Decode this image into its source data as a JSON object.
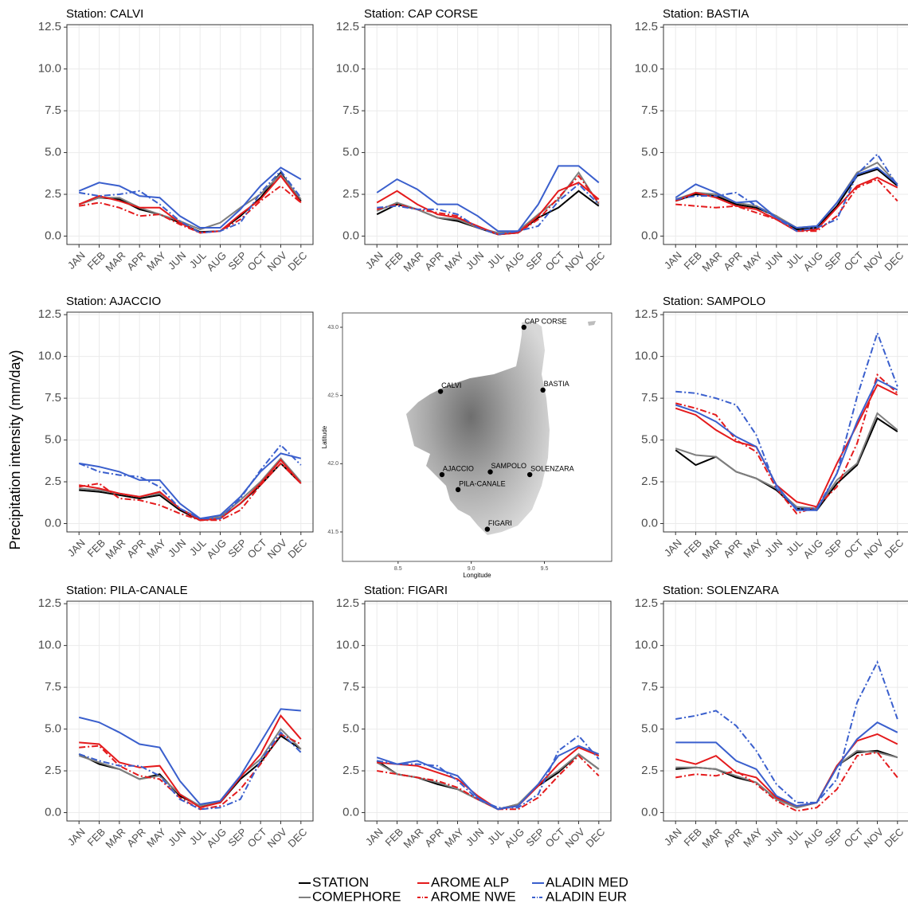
{
  "y_axis_label": "Precipitation intensity (mm/day)",
  "legend": [
    {
      "name": "STATION",
      "color": "#000000",
      "dash": "solid"
    },
    {
      "name": "COMEPHORE",
      "color": "#7f7f7f",
      "dash": "solid"
    },
    {
      "name": "AROME ALP",
      "color": "#e41a1c",
      "dash": "solid"
    },
    {
      "name": "AROME NWE",
      "color": "#e41a1c",
      "dash": "dotdash"
    },
    {
      "name": "ALADIN MED",
      "color": "#3a5fcd",
      "dash": "solid"
    },
    {
      "name": "ALADIN EUR",
      "color": "#3a5fcd",
      "dash": "dotdash"
    }
  ],
  "chart_data": [
    {
      "type": "line",
      "title": "Station: CALVI",
      "categories": [
        "JAN",
        "FEB",
        "MAR",
        "APR",
        "MAY",
        "JUN",
        "JUL",
        "AUG",
        "SEP",
        "OCT",
        "NOV",
        "DEC"
      ],
      "ylim": [
        -0.5,
        12.65
      ],
      "yticks": [
        {
          "value": 0,
          "label": "0.0"
        },
        2.5,
        {
          "value": 5,
          "label": "5.0"
        },
        7.5,
        {
          "value": 10,
          "label": "10.0"
        },
        12.5
      ],
      "grid": true,
      "series": [
        {
          "values": [
            1.9,
            2.3,
            2.2,
            1.6,
            1.3,
            0.8,
            0.25,
            0.3,
            1.2,
            2.3,
            3.8,
            2.1
          ]
        },
        {
          "values": [
            1.9,
            2.3,
            2.3,
            1.7,
            1.3,
            0.9,
            0.4,
            0.8,
            1.7,
            2.5,
            3.7,
            2.2
          ]
        },
        {
          "values": [
            1.9,
            2.4,
            2.1,
            1.7,
            1.7,
            0.8,
            0.2,
            0.3,
            1.3,
            2.2,
            3.6,
            2.0
          ]
        },
        {
          "values": [
            1.8,
            2.0,
            1.7,
            1.2,
            1.3,
            0.7,
            0.2,
            0.3,
            1.0,
            2.1,
            3.0,
            2.0
          ]
        },
        {
          "values": [
            2.7,
            3.2,
            3.0,
            2.4,
            2.3,
            1.2,
            0.5,
            0.5,
            1.6,
            3.0,
            4.1,
            3.4
          ]
        },
        {
          "values": [
            2.6,
            2.4,
            2.5,
            2.7,
            1.9,
            0.9,
            0.2,
            0.3,
            0.8,
            2.6,
            3.9,
            2.3
          ]
        }
      ]
    },
    {
      "type": "line",
      "title": "Station: CAP CORSE",
      "categories": [
        "JAN",
        "FEB",
        "MAR",
        "APR",
        "MAY",
        "JUN",
        "JUL",
        "AUG",
        "SEP",
        "OCT",
        "NOV",
        "DEC"
      ],
      "ylim": [
        -0.5,
        12.65
      ],
      "yticks": [
        {
          "value": 0,
          "label": "0.0"
        },
        2.5,
        {
          "value": 5,
          "label": "5.0"
        },
        7.5,
        {
          "value": 10,
          "label": "10.0"
        },
        12.5
      ],
      "grid": true,
      "series": [
        {
          "values": [
            1.3,
            1.9,
            1.6,
            1.1,
            0.9,
            0.5,
            0.1,
            0.2,
            1.1,
            1.7,
            2.7,
            1.8
          ]
        },
        {
          "values": [
            1.5,
            2.0,
            1.6,
            1.1,
            1.0,
            0.5,
            0.2,
            0.3,
            1.3,
            2.2,
            3.8,
            1.9
          ]
        },
        {
          "values": [
            2.0,
            2.7,
            1.9,
            1.3,
            1.1,
            0.6,
            0.1,
            0.2,
            1.2,
            2.7,
            3.2,
            2.2
          ]
        },
        {
          "values": [
            1.6,
            1.9,
            1.6,
            1.4,
            1.2,
            0.5,
            0.1,
            0.2,
            1.0,
            2.3,
            3.6,
            2.0
          ]
        },
        {
          "values": [
            2.6,
            3.4,
            2.8,
            1.9,
            1.9,
            1.2,
            0.3,
            0.3,
            1.9,
            4.2,
            4.2,
            3.2
          ]
        },
        {
          "values": [
            1.7,
            1.8,
            1.6,
            1.6,
            1.3,
            0.5,
            0.1,
            0.3,
            0.6,
            2.1,
            3.1,
            1.9
          ]
        }
      ]
    },
    {
      "type": "line",
      "title": "Station: BASTIA",
      "categories": [
        "JAN",
        "FEB",
        "MAR",
        "APR",
        "MAY",
        "JUN",
        "JUL",
        "AUG",
        "SEP",
        "OCT",
        "NOV",
        "DEC"
      ],
      "ylim": [
        -0.5,
        12.65
      ],
      "yticks": [
        {
          "value": 0,
          "label": "0.0"
        },
        2.5,
        {
          "value": 5,
          "label": "5.0"
        },
        7.5,
        {
          "value": 10,
          "label": "10.0"
        },
        12.5
      ],
      "grid": true,
      "series": [
        {
          "values": [
            2.1,
            2.5,
            2.4,
            1.9,
            1.7,
            1.2,
            0.4,
            0.5,
            1.8,
            3.6,
            4.0,
            3.0
          ]
        },
        {
          "values": [
            2.2,
            2.6,
            2.5,
            2.0,
            1.8,
            1.2,
            0.5,
            0.6,
            2.0,
            3.8,
            4.4,
            3.1
          ]
        },
        {
          "values": [
            2.1,
            2.6,
            2.3,
            1.8,
            1.6,
            1.0,
            0.3,
            0.4,
            1.7,
            3.0,
            3.5,
            2.9
          ]
        },
        {
          "values": [
            1.9,
            1.8,
            1.7,
            1.8,
            1.4,
            1.0,
            0.3,
            0.3,
            1.2,
            2.9,
            3.4,
            2.1
          ]
        },
        {
          "values": [
            2.3,
            3.1,
            2.6,
            2.0,
            2.1,
            1.1,
            0.5,
            0.6,
            2.0,
            3.7,
            4.1,
            3.1
          ]
        },
        {
          "values": [
            2.2,
            2.4,
            2.4,
            2.6,
            1.8,
            1.1,
            0.3,
            0.5,
            1.0,
            3.7,
            4.9,
            3.0
          ]
        }
      ]
    },
    {
      "type": "line",
      "title": "Station: AJACCIO",
      "categories": [
        "JAN",
        "FEB",
        "MAR",
        "APR",
        "MAY",
        "JUN",
        "JUL",
        "AUG",
        "SEP",
        "OCT",
        "NOV",
        "DEC"
      ],
      "ylim": [
        -0.5,
        12.65
      ],
      "yticks": [
        {
          "value": 0,
          "label": "0.0"
        },
        2.5,
        {
          "value": 5,
          "label": "5.0"
        },
        7.5,
        {
          "value": 10,
          "label": "10.0"
        },
        12.5
      ],
      "grid": true,
      "series": [
        {
          "values": [
            2.0,
            1.9,
            1.7,
            1.5,
            1.7,
            0.8,
            0.2,
            0.3,
            1.2,
            2.3,
            3.6,
            2.4
          ]
        },
        {
          "values": [
            2.1,
            2.0,
            1.8,
            1.6,
            1.8,
            0.9,
            0.3,
            0.4,
            1.4,
            2.5,
            3.9,
            2.5
          ]
        },
        {
          "values": [
            2.3,
            2.1,
            1.8,
            1.6,
            1.9,
            0.9,
            0.2,
            0.3,
            1.2,
            2.4,
            3.8,
            2.4
          ]
        },
        {
          "values": [
            2.2,
            2.4,
            1.5,
            1.4,
            1.1,
            0.6,
            0.2,
            0.2,
            0.8,
            2.3,
            3.6,
            2.4
          ]
        },
        {
          "values": [
            3.6,
            3.4,
            3.1,
            2.6,
            2.6,
            1.2,
            0.3,
            0.5,
            1.6,
            3.1,
            4.2,
            3.9
          ]
        },
        {
          "values": [
            3.6,
            3.1,
            2.9,
            2.8,
            2.2,
            0.9,
            0.3,
            0.3,
            1.5,
            3.2,
            4.7,
            3.5
          ]
        }
      ]
    },
    {
      "type": "scatter",
      "x_label": "Longitude",
      "y_label": "Latitude",
      "labels": [
        "CAP CORSE",
        "CALVI",
        "BASTIA",
        "AJACCIO",
        "SAMPOLO",
        "SOLENZARA",
        "PILA-CANALE",
        "FIGARI"
      ],
      "x": [
        9.36,
        8.79,
        9.49,
        8.8,
        9.13,
        9.4,
        8.91,
        9.11
      ],
      "y": [
        43.0,
        42.53,
        42.54,
        41.92,
        41.94,
        41.92,
        41.81,
        41.52
      ],
      "color": "#000000",
      "xlim": [
        8.12,
        9.96
      ],
      "ylim": [
        41.284,
        43.105
      ],
      "xticks": [
        8.5,
        {
          "value": 9,
          "label": "9.0"
        },
        9.5
      ],
      "yticks": [
        41.5,
        {
          "value": 42,
          "label": "42.0"
        },
        42.5,
        {
          "value": 43,
          "label": "43.0"
        }
      ]
    },
    {
      "type": "line",
      "title": "Station: SAMPOLO",
      "categories": [
        "JAN",
        "FEB",
        "MAR",
        "APR",
        "MAY",
        "JUN",
        "JUL",
        "AUG",
        "SEP",
        "OCT",
        "NOV",
        "DEC"
      ],
      "ylim": [
        -0.5,
        12.65
      ],
      "yticks": [
        {
          "value": 0,
          "label": "0.0"
        },
        2.5,
        {
          "value": 5,
          "label": "5.0"
        },
        7.5,
        {
          "value": 10,
          "label": "10.0"
        },
        12.5
      ],
      "grid": true,
      "series": [
        {
          "values": [
            4.4,
            3.5,
            4.0,
            3.1,
            2.7,
            2.0,
            0.9,
            0.8,
            2.4,
            3.5,
            6.3,
            5.5
          ]
        },
        {
          "values": [
            4.5,
            4.1,
            4.0,
            3.1,
            2.7,
            2.1,
            1.0,
            0.9,
            2.6,
            3.6,
            6.6,
            5.6
          ]
        },
        {
          "values": [
            6.9,
            6.5,
            5.6,
            4.9,
            4.6,
            2.3,
            1.3,
            1.0,
            3.6,
            5.9,
            8.3,
            7.7
          ]
        },
        {
          "values": [
            7.2,
            6.9,
            6.5,
            5.0,
            4.3,
            2.1,
            0.6,
            1.0,
            2.2,
            4.8,
            8.9,
            7.8
          ]
        },
        {
          "values": [
            7.1,
            6.7,
            6.1,
            5.2,
            4.6,
            2.3,
            0.8,
            0.8,
            3.0,
            6.1,
            8.6,
            8.0
          ]
        },
        {
          "values": [
            7.9,
            7.8,
            7.5,
            7.1,
            5.3,
            2.1,
            0.9,
            0.9,
            3.0,
            7.6,
            11.4,
            8.2
          ]
        }
      ]
    },
    {
      "type": "line",
      "title": "Station: PILA-CANALE",
      "categories": [
        "JAN",
        "FEB",
        "MAR",
        "APR",
        "MAY",
        "JUN",
        "JUL",
        "AUG",
        "SEP",
        "OCT",
        "NOV",
        "DEC"
      ],
      "ylim": [
        -0.5,
        12.65
      ],
      "yticks": [
        {
          "value": 0,
          "label": "0.0"
        },
        2.5,
        {
          "value": 5,
          "label": "5.0"
        },
        7.5,
        {
          "value": 10,
          "label": "10.0"
        },
        12.5
      ],
      "grid": true,
      "series": [
        {
          "values": [
            3.5,
            2.9,
            2.6,
            2.0,
            2.3,
            1.0,
            0.4,
            0.6,
            2.0,
            3.0,
            4.6,
            3.8
          ]
        },
        {
          "values": [
            3.4,
            3.0,
            2.6,
            2.0,
            2.2,
            1.1,
            0.4,
            0.7,
            2.2,
            3.2,
            5.0,
            3.8
          ]
        },
        {
          "values": [
            4.2,
            4.1,
            3.0,
            2.7,
            2.8,
            1.1,
            0.3,
            0.6,
            2.1,
            3.5,
            5.8,
            4.4
          ]
        },
        {
          "values": [
            3.9,
            4.0,
            2.8,
            2.2,
            2.0,
            0.9,
            0.2,
            0.4,
            1.4,
            2.9,
            4.7,
            4.1
          ]
        },
        {
          "values": [
            5.7,
            5.4,
            4.8,
            4.1,
            3.9,
            1.9,
            0.5,
            0.7,
            2.2,
            4.2,
            6.2,
            6.1
          ]
        },
        {
          "values": [
            3.5,
            3.1,
            2.8,
            2.8,
            2.2,
            0.8,
            0.2,
            0.3,
            0.8,
            3.1,
            4.8,
            3.6
          ]
        }
      ]
    },
    {
      "type": "line",
      "title": "Station: FIGARI",
      "categories": [
        "JAN",
        "FEB",
        "MAR",
        "APR",
        "MAY",
        "JUN",
        "JUL",
        "AUG",
        "SEP",
        "OCT",
        "NOV",
        "DEC"
      ],
      "ylim": [
        -0.5,
        12.65
      ],
      "yticks": [
        {
          "value": 0,
          "label": "0.0"
        },
        2.5,
        {
          "value": 5,
          "label": "5.0"
        },
        7.5,
        {
          "value": 10,
          "label": "10.0"
        },
        12.5
      ],
      "grid": true,
      "series": [
        {
          "values": [
            3.1,
            2.3,
            2.1,
            1.7,
            1.4,
            0.8,
            0.2,
            0.5,
            1.6,
            2.4,
            3.5,
            2.6
          ]
        },
        {
          "values": [
            3.0,
            2.3,
            2.1,
            1.8,
            1.4,
            0.8,
            0.2,
            0.5,
            1.7,
            2.5,
            3.5,
            2.6
          ]
        },
        {
          "values": [
            3.0,
            2.9,
            2.8,
            2.4,
            2.0,
            1.0,
            0.2,
            0.4,
            1.6,
            2.9,
            3.9,
            3.4
          ]
        },
        {
          "values": [
            2.5,
            2.3,
            2.1,
            1.9,
            1.5,
            0.8,
            0.2,
            0.2,
            0.9,
            2.2,
            3.4,
            2.2
          ]
        },
        {
          "values": [
            3.3,
            2.9,
            3.1,
            2.6,
            2.2,
            0.9,
            0.2,
            0.4,
            1.7,
            3.4,
            4.0,
            3.5
          ]
        },
        {
          "values": [
            3.1,
            2.9,
            2.9,
            2.8,
            1.9,
            0.8,
            0.3,
            0.3,
            1.1,
            3.7,
            4.6,
            3.2
          ]
        }
      ]
    },
    {
      "type": "line",
      "title": "Station: SOLENZARA",
      "categories": [
        "JAN",
        "FEB",
        "MAR",
        "APR",
        "MAY",
        "JUN",
        "JUL",
        "AUG",
        "SEP",
        "OCT",
        "NOV",
        "DEC"
      ],
      "ylim": [
        -0.5,
        12.65
      ],
      "yticks": [
        {
          "value": 0,
          "label": "0.0"
        },
        2.5,
        {
          "value": 5,
          "label": "5.0"
        },
        7.5,
        {
          "value": 10,
          "label": "10.0"
        },
        12.5
      ],
      "grid": true,
      "series": [
        {
          "values": [
            2.6,
            2.7,
            2.6,
            2.1,
            1.8,
            0.8,
            0.3,
            0.6,
            2.8,
            3.6,
            3.7,
            3.3
          ]
        },
        {
          "values": [
            2.7,
            2.7,
            2.6,
            2.2,
            1.8,
            0.8,
            0.3,
            0.6,
            2.8,
            3.7,
            3.6,
            3.3
          ]
        },
        {
          "values": [
            3.2,
            2.9,
            3.4,
            2.4,
            2.1,
            0.9,
            0.4,
            0.6,
            2.8,
            4.3,
            4.7,
            4.1
          ]
        },
        {
          "values": [
            2.1,
            2.3,
            2.2,
            2.5,
            1.7,
            0.7,
            0.1,
            0.3,
            1.4,
            3.4,
            3.6,
            2.1
          ]
        },
        {
          "values": [
            4.2,
            4.2,
            4.2,
            3.1,
            2.6,
            1.0,
            0.4,
            0.6,
            2.7,
            4.4,
            5.4,
            4.8
          ]
        },
        {
          "values": [
            5.6,
            5.8,
            6.1,
            5.2,
            3.7,
            1.7,
            0.6,
            0.6,
            2.0,
            6.6,
            9.0,
            5.6
          ]
        }
      ]
    }
  ]
}
